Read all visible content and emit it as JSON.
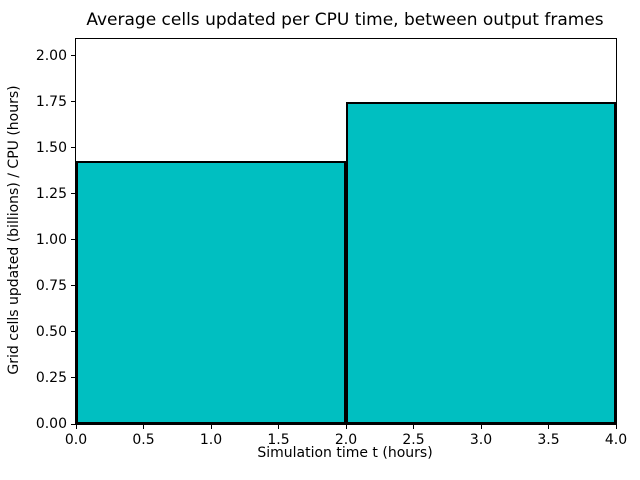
{
  "figure": {
    "background_color": "#ffffff",
    "text_color": "#000000"
  },
  "chart_data": {
    "type": "bar",
    "title": "Average cells updated per CPU time, between output frames",
    "xlabel": "Simulation time t (hours)",
    "ylabel": "Grid cells updated (billions) / CPU (hours)",
    "xlim": [
      0.0,
      4.0
    ],
    "ylim": [
      0.0,
      2.09
    ],
    "grid": false,
    "bar_color": "#00bfc1",
    "bar_edge_color": "#000000",
    "bars": [
      {
        "x_start": 0.0,
        "x_end": 2.0,
        "value": 1.43
      },
      {
        "x_start": 2.0,
        "x_end": 4.0,
        "value": 1.75
      }
    ],
    "xticks": {
      "values": [
        0.0,
        0.5,
        1.0,
        1.5,
        2.0,
        2.5,
        3.0,
        3.5,
        4.0
      ],
      "labels": [
        "0.0",
        "0.5",
        "1.0",
        "1.5",
        "2.0",
        "2.5",
        "3.0",
        "3.5",
        "4.0"
      ]
    },
    "yticks": {
      "values": [
        0.0,
        0.25,
        0.5,
        0.75,
        1.0,
        1.25,
        1.5,
        1.75,
        2.0
      ],
      "labels": [
        "0.00",
        "0.25",
        "0.50",
        "0.75",
        "1.00",
        "1.25",
        "1.50",
        "1.75",
        "2.00"
      ]
    }
  }
}
